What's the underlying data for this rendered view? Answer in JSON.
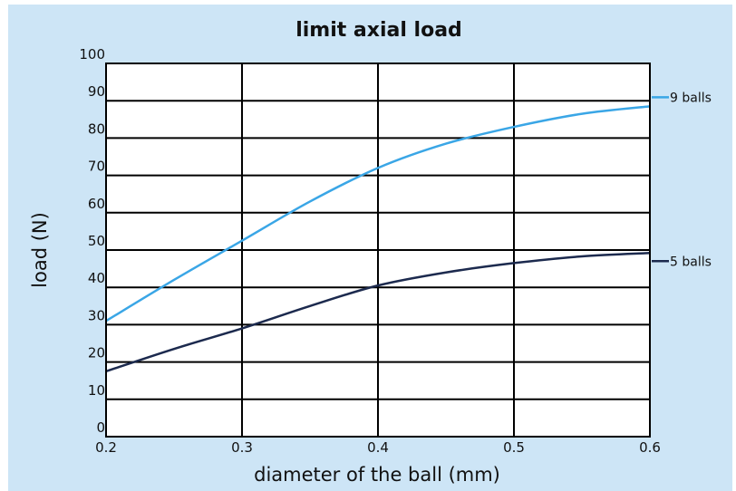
{
  "chart_data": {
    "type": "line",
    "title": "limit axial load",
    "xlabel": "diameter of the ball (mm)",
    "ylabel": "load (N)",
    "xlim": [
      0.2,
      0.6
    ],
    "ylim": [
      0,
      100
    ],
    "x_ticks": [
      "0.2",
      "0.3",
      "0.4",
      "0.5",
      "0.6"
    ],
    "y_ticks": [
      "0",
      "10",
      "20",
      "30",
      "40",
      "50",
      "60",
      "70",
      "80",
      "90",
      "100"
    ],
    "grid": true,
    "legend_position": "right",
    "series": [
      {
        "name": "9 balls",
        "color": "#3aa6e6",
        "x": [
          0.2,
          0.25,
          0.3,
          0.35,
          0.4,
          0.45,
          0.5,
          0.55,
          0.6
        ],
        "y": [
          31,
          42,
          52.5,
          63,
          72,
          78.5,
          83,
          86.5,
          88.5
        ]
      },
      {
        "name": "5 balls",
        "color": "#1c2a4e",
        "x": [
          0.2,
          0.25,
          0.3,
          0.35,
          0.4,
          0.45,
          0.5,
          0.55,
          0.6
        ],
        "y": [
          17.5,
          23.5,
          29,
          35,
          40.5,
          44,
          46.5,
          48.3,
          49.2
        ]
      }
    ]
  }
}
